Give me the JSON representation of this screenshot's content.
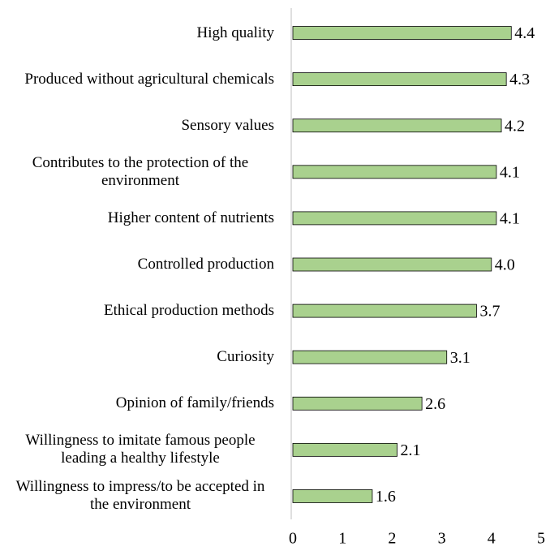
{
  "chart_data": {
    "type": "bar",
    "orientation": "horizontal",
    "categories": [
      "High quality",
      "Produced without agricultural chemicals",
      "Sensory values",
      "Contributes to the protection of the environment",
      "Higher content of nutrients",
      "Controlled production",
      "Ethical production methods",
      "Curiosity",
      "Opinion of family/friends",
      "Willingness to imitate famous people leading a healthy lifestyle",
      "Willingness to impress/to be accepted in the environment"
    ],
    "values": [
      4.4,
      4.3,
      4.2,
      4.1,
      4.1,
      4.0,
      3.7,
      3.1,
      2.6,
      2.1,
      1.6
    ],
    "value_labels": [
      "4.4",
      "4.3",
      "4.2",
      "4.1",
      "4.1",
      "4.0",
      "3.7",
      "3.1",
      "2.6",
      "2.1",
      "1.6"
    ],
    "color": "#a9d18e",
    "xlim": [
      0,
      5
    ],
    "xticks": [
      0,
      1,
      2,
      3,
      4,
      5
    ],
    "grid": false
  }
}
